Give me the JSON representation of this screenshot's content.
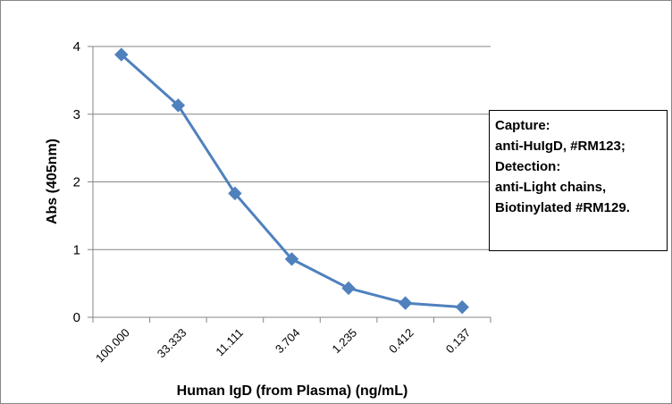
{
  "chart_data": {
    "type": "line",
    "categories": [
      "100.000",
      "33.333",
      "11.111",
      "3.704",
      "1.235",
      "0.412",
      "0.137"
    ],
    "series": [
      {
        "values": [
          3.88,
          3.13,
          1.83,
          0.86,
          0.43,
          0.21,
          0.15
        ],
        "color": "#4f81bd",
        "marker": "diamond"
      }
    ],
    "xlabel": "Human IgD (from Plasma) (ng/mL)",
    "ylabel": "Abs (405nm)",
    "ylim": [
      0,
      4
    ],
    "yticks": [
      0,
      1,
      2,
      3,
      4
    ],
    "grid": true,
    "legend_placement": "right",
    "annotation_lines": [
      "Capture:",
      "anti-HuIgD, #RM123;",
      "Detection:",
      "anti-Light chains,",
      "Biotinylated #RM129."
    ]
  }
}
